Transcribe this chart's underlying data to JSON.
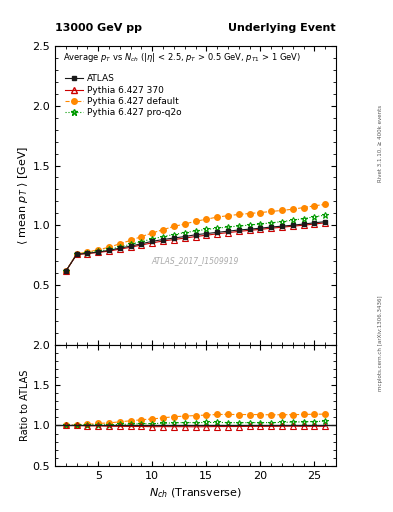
{
  "title_left": "13000 GeV pp",
  "title_right": "Underlying Event",
  "subtitle": "Average $p_T$ vs $N_{ch}$ ($|\\eta|$ < 2.5, $p_T$ > 0.5 GeV, $p_{T1}$ > 1 GeV)",
  "watermark": "ATLAS_2017_I1509919",
  "xlabel": "$N_{ch}$ (Transverse)",
  "ylabel_main": "$\\langle$ mean $p_T$ $\\rangle$ [GeV]",
  "ylabel_ratio": "Ratio to ATLAS",
  "right_label_top": "Rivet 3.1.10, ≥ 400k events",
  "right_label_bot": "mcplots.cern.ch [arXiv:1306.3436]",
  "ylim_main": [
    0.0,
    2.5
  ],
  "ylim_ratio": [
    0.5,
    2.0
  ],
  "xlim": [
    1,
    27
  ],
  "atlas_x": [
    2,
    3,
    4,
    5,
    6,
    7,
    8,
    9,
    10,
    11,
    12,
    13,
    14,
    15,
    16,
    17,
    18,
    19,
    20,
    21,
    22,
    23,
    24,
    25,
    26
  ],
  "atlas_y": [
    0.615,
    0.755,
    0.765,
    0.775,
    0.79,
    0.808,
    0.825,
    0.845,
    0.865,
    0.88,
    0.893,
    0.905,
    0.92,
    0.93,
    0.94,
    0.95,
    0.96,
    0.967,
    0.975,
    0.985,
    0.992,
    1.0,
    1.01,
    1.02,
    1.03
  ],
  "py370_x": [
    2,
    3,
    4,
    5,
    6,
    7,
    8,
    9,
    10,
    11,
    12,
    13,
    14,
    15,
    16,
    17,
    18,
    19,
    20,
    21,
    22,
    23,
    24,
    25,
    26
  ],
  "py370_y": [
    0.615,
    0.755,
    0.763,
    0.772,
    0.783,
    0.8,
    0.815,
    0.835,
    0.852,
    0.868,
    0.88,
    0.892,
    0.905,
    0.916,
    0.928,
    0.938,
    0.948,
    0.957,
    0.965,
    0.975,
    0.983,
    0.992,
    1.0,
    1.01,
    1.02
  ],
  "pydef_x": [
    2,
    3,
    4,
    5,
    6,
    7,
    8,
    9,
    10,
    11,
    12,
    13,
    14,
    15,
    16,
    17,
    18,
    19,
    20,
    21,
    22,
    23,
    24,
    25,
    26
  ],
  "pydef_y": [
    0.615,
    0.76,
    0.775,
    0.795,
    0.815,
    0.845,
    0.873,
    0.905,
    0.935,
    0.963,
    0.99,
    1.01,
    1.033,
    1.05,
    1.068,
    1.08,
    1.09,
    1.098,
    1.106,
    1.115,
    1.124,
    1.134,
    1.148,
    1.162,
    1.175
  ],
  "pyproq2o_x": [
    2,
    3,
    4,
    5,
    6,
    7,
    8,
    9,
    10,
    11,
    12,
    13,
    14,
    15,
    16,
    17,
    18,
    19,
    20,
    21,
    22,
    23,
    24,
    25,
    26
  ],
  "pyproq2o_y": [
    0.615,
    0.758,
    0.77,
    0.782,
    0.797,
    0.818,
    0.84,
    0.863,
    0.885,
    0.905,
    0.922,
    0.938,
    0.952,
    0.965,
    0.975,
    0.985,
    0.993,
    1.001,
    1.01,
    1.02,
    1.03,
    1.042,
    1.056,
    1.07,
    1.085
  ],
  "atlas_color": "#1a1a1a",
  "py370_color": "#cc0000",
  "pydef_color": "#ff8800",
  "pyproq2o_color": "#009900",
  "yticks_main": [
    0.5,
    1.0,
    1.5,
    2.0,
    2.5
  ],
  "yticks_ratio": [
    0.5,
    1.0,
    1.5,
    2.0
  ],
  "xticks_main": [
    5,
    10,
    15,
    20,
    25
  ],
  "xticks_ratio": [
    5,
    10,
    15,
    20,
    25
  ]
}
